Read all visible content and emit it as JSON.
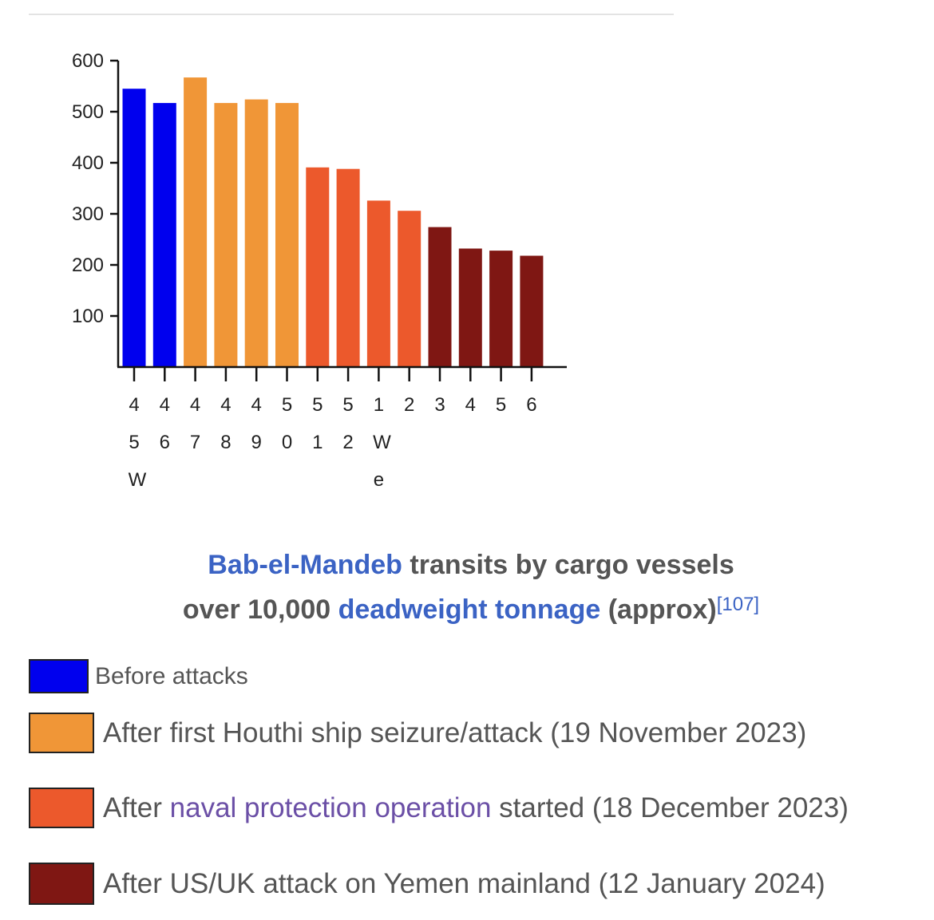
{
  "chart_data": {
    "type": "bar",
    "categories": [
      "4\n5\nW",
      "4\n6",
      "4\n7",
      "4\n8",
      "4\n9",
      "5\n0",
      "5\n1",
      "5\n2",
      "1\nW\ne",
      "2",
      "3",
      "4",
      "5",
      "6"
    ],
    "values": [
      545,
      517,
      567,
      517,
      524,
      517,
      391,
      388,
      326,
      306,
      274,
      232,
      228,
      218
    ],
    "groups": [
      0,
      0,
      1,
      1,
      1,
      1,
      2,
      2,
      2,
      2,
      3,
      3,
      3,
      3
    ],
    "y_ticks": [
      100,
      200,
      300,
      400,
      500,
      600
    ],
    "y_tick_labels": [
      "100",
      "200",
      "300",
      "400",
      "500",
      "600"
    ],
    "ylim": [
      0,
      600
    ],
    "group_colors": [
      "#0000ee",
      "#f09637",
      "#ec592c",
      "#7f1713"
    ],
    "xlabel": "",
    "ylabel": ""
  },
  "caption": {
    "part1_link": "Bab-el-Mandeb",
    "part1_text": " transits by cargo vessels",
    "part2_text": "over 10,000 ",
    "part2_link": "deadweight tonnage",
    "part2_end": " (approx)",
    "ref": "[107]"
  },
  "legend": {
    "items": [
      {
        "color": "#0000ee",
        "text": "Before attacks"
      },
      {
        "color": "#f09637",
        "text": "After first Houthi ship seizure/attack (19 November 2023)"
      },
      {
        "color": "#ec592c",
        "text_before": "After ",
        "text_link": "naval protection operation",
        "text_after": " started (18 December 2023)"
      },
      {
        "color": "#7f1713",
        "text": "After US/UK attack on Yemen mainland (12 January 2024)"
      }
    ]
  }
}
